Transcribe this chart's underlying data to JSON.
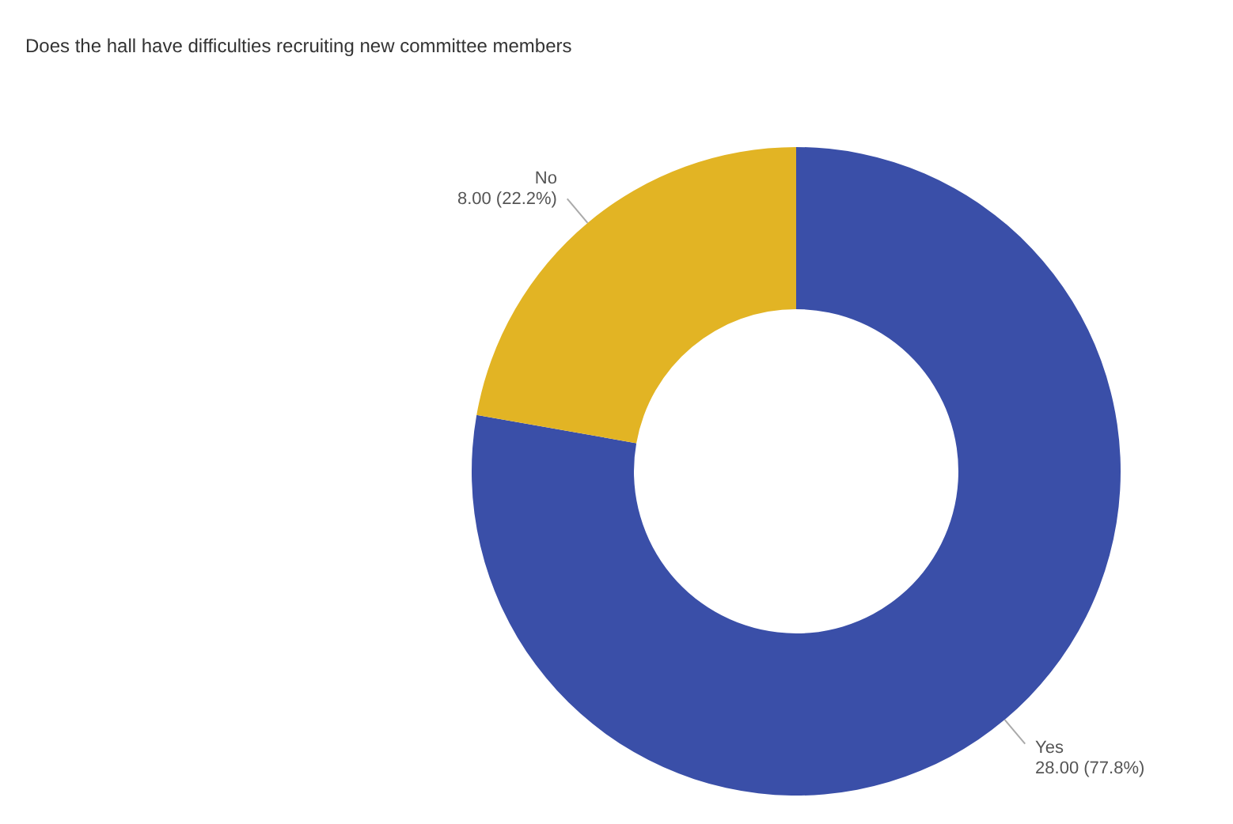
{
  "chart_data": {
    "type": "donut",
    "title": "Does the hall have difficulties recruiting new committee members",
    "categories": [
      "Yes",
      "No"
    ],
    "values": [
      28,
      8
    ],
    "colors": [
      "#3a4fa8",
      "#e2b424"
    ],
    "value_labels": [
      "28.00 (77.8%)",
      "8.00 (22.2%)"
    ],
    "legend": false
  }
}
